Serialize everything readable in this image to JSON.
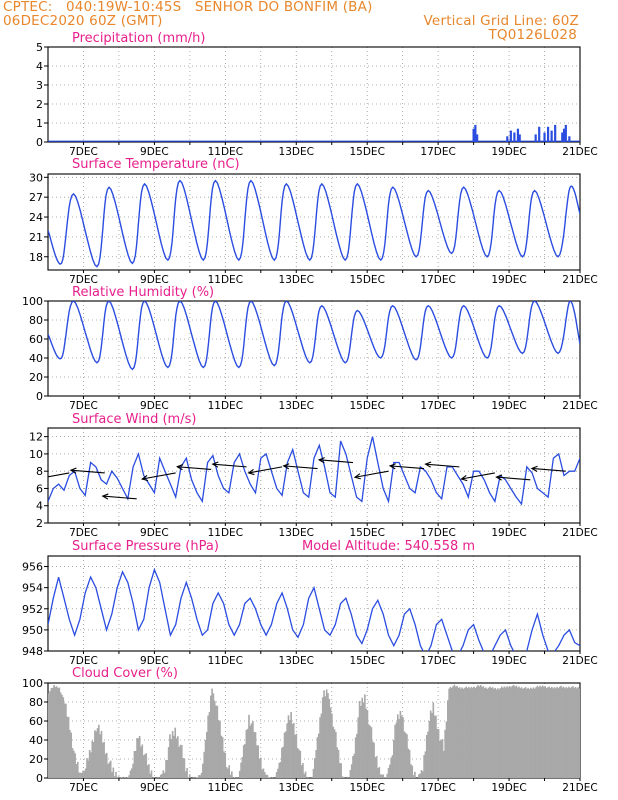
{
  "header": {
    "line1": "CPTEC:   040:19W-10:45S   SENHOR DO BONFIM (BA)",
    "line2": "06DEC2020 60Z (GMT)",
    "grid_note": "Vertical Grid Line: 60Z",
    "code": "TQ0126L028"
  },
  "colors": {
    "header": "#e8872c",
    "title": "#e8208c",
    "line": "#2b4de0",
    "cloud": "#a8a8a8",
    "grid": "#999999"
  },
  "chart_data": [
    {
      "id": "precip",
      "type": "bar",
      "title": "Precipitation (mm/h)",
      "x_tick_labels": [
        "7DEC",
        "9DEC",
        "11DEC",
        "13DEC",
        "15DEC",
        "17DEC",
        "19DEC",
        "21DEC"
      ],
      "ylim": [
        0,
        5
      ],
      "y_ticks": [
        0,
        1,
        2,
        3,
        4,
        5
      ],
      "bars": [
        [
          18.0,
          0.7
        ],
        [
          18.05,
          0.9
        ],
        [
          18.1,
          0.4
        ],
        [
          18.95,
          0.3
        ],
        [
          19.05,
          0.6
        ],
        [
          19.15,
          0.5
        ],
        [
          19.25,
          0.7
        ],
        [
          19.3,
          0.4
        ],
        [
          19.75,
          0.4
        ],
        [
          19.85,
          0.8
        ],
        [
          20.0,
          0.5
        ],
        [
          20.1,
          0.8
        ],
        [
          20.2,
          0.6
        ],
        [
          20.3,
          0.9
        ],
        [
          20.5,
          0.5
        ],
        [
          20.55,
          0.7
        ],
        [
          20.6,
          0.9
        ],
        [
          20.7,
          0.3
        ]
      ]
    },
    {
      "id": "temp",
      "type": "line",
      "title": "Surface Temperature (nC)",
      "x_tick_labels": [
        "7DEC",
        "9DEC",
        "11DEC",
        "13DEC",
        "15DEC",
        "17DEC",
        "19DEC",
        "21DEC"
      ],
      "ylim": [
        16,
        30.5
      ],
      "y_ticks": [
        18,
        21,
        24,
        27,
        30
      ],
      "daily_max": [
        27.5,
        28.5,
        29.0,
        29.5,
        29.5,
        29.5,
        29.0,
        29.0,
        29.0,
        28.5,
        28.0,
        28.5,
        28.0,
        28.0,
        28.5
      ],
      "daily_min": [
        17.0,
        16.5,
        17.0,
        17.5,
        17.5,
        17.5,
        17.5,
        17.5,
        17.5,
        17.5,
        18.0,
        18.5,
        18.0,
        18.0,
        18.0
      ],
      "start_value": 22.0,
      "end_value": 24.5
    },
    {
      "id": "rh",
      "type": "line",
      "title": "Relative Humidity (%)",
      "x_tick_labels": [
        "7DEC",
        "9DEC",
        "11DEC",
        "13DEC",
        "15DEC",
        "17DEC",
        "19DEC",
        "21DEC"
      ],
      "ylim": [
        0,
        100
      ],
      "y_ticks": [
        0,
        20,
        40,
        60,
        80,
        100
      ],
      "daily_max": [
        100,
        100,
        100,
        100,
        100,
        100,
        100,
        95,
        90,
        95,
        95,
        95,
        95,
        100,
        100
      ],
      "daily_min": [
        40,
        35,
        28,
        30,
        30,
        30,
        32,
        35,
        35,
        40,
        38,
        40,
        40,
        45,
        45
      ],
      "start_value": 65,
      "end_value": 55
    },
    {
      "id": "wind",
      "type": "line",
      "title": "Surface Wind (m/s)",
      "x_tick_labels": [
        "7DEC",
        "9DEC",
        "11DEC",
        "13DEC",
        "15DEC",
        "17DEC",
        "19DEC",
        "21DEC"
      ],
      "ylim": [
        2,
        13
      ],
      "y_ticks": [
        2,
        4,
        6,
        8,
        10,
        12
      ],
      "speed": [
        4.5,
        6.0,
        6.5,
        5.8,
        7.5,
        8.0,
        6.0,
        5.2,
        9.0,
        8.5,
        7.0,
        6.5,
        8.0,
        7.2,
        6.0,
        4.8,
        8.5,
        10.0,
        7.5,
        6.5,
        5.5,
        9.5,
        8.0,
        6.5,
        5.0,
        8.5,
        9.5,
        7.0,
        5.5,
        4.5,
        9.0,
        9.8,
        7.5,
        6.0,
        5.5,
        9.0,
        10.0,
        8.0,
        6.5,
        5.5,
        9.5,
        10.0,
        8.0,
        6.0,
        5.2,
        9.0,
        10.5,
        8.0,
        5.5,
        5.0,
        9.5,
        11.0,
        8.5,
        5.5,
        5.0,
        11.5,
        10.0,
        7.5,
        5.0,
        4.5,
        9.5,
        12.0,
        9.0,
        6.0,
        4.5,
        9.0,
        9.0,
        7.5,
        6.0,
        5.5,
        8.5,
        8.0,
        7.0,
        5.5,
        4.8,
        8.5,
        8.5,
        7.5,
        6.5,
        5.0,
        8.0,
        8.0,
        7.0,
        5.5,
        4.5,
        7.5,
        7.0,
        6.0,
        5.0,
        4.2,
        8.5,
        7.8,
        6.0,
        5.5,
        5.0,
        9.5,
        10.0,
        7.5,
        8.0,
        8.0,
        9.5
      ],
      "arrows": [
        [
          6.6,
          7.8
        ],
        [
          7.6,
          7.8
        ],
        [
          8.5,
          4.8
        ],
        [
          9.6,
          7.8
        ],
        [
          10.6,
          8.2
        ],
        [
          11.6,
          8.5
        ],
        [
          12.6,
          8.5
        ],
        [
          13.6,
          8.3
        ],
        [
          14.6,
          9.0
        ],
        [
          15.6,
          8.0
        ],
        [
          16.6,
          8.3
        ],
        [
          17.6,
          8.5
        ],
        [
          18.6,
          7.8
        ],
        [
          19.6,
          7.0
        ],
        [
          20.6,
          8.0
        ]
      ]
    },
    {
      "id": "pressure",
      "type": "line",
      "title": "Surface Pressure (hPa)",
      "annotation": "Model Altitude: 540.558 m",
      "x_tick_labels": [
        "7DEC",
        "9DEC",
        "11DEC",
        "13DEC",
        "15DEC",
        "17DEC",
        "19DEC",
        "21DEC"
      ],
      "ylim": [
        948,
        957
      ],
      "y_ticks": [
        948,
        950,
        952,
        954,
        956
      ],
      "values": [
        950.5,
        953.0,
        955.0,
        953.0,
        951.0,
        949.5,
        951.0,
        953.5,
        955.0,
        954.0,
        952.0,
        950.0,
        951.5,
        954.0,
        955.5,
        954.5,
        952.5,
        950.0,
        951.0,
        954.0,
        955.7,
        954.5,
        952.0,
        949.5,
        950.5,
        953.0,
        954.5,
        953.0,
        951.0,
        949.5,
        950.0,
        952.5,
        953.5,
        952.5,
        950.5,
        949.5,
        950.5,
        952.5,
        953.0,
        952.0,
        950.5,
        949.5,
        950.5,
        952.5,
        953.5,
        952.0,
        950.0,
        949.3,
        950.5,
        953.0,
        954.0,
        952.0,
        950.0,
        949.5,
        950.5,
        952.5,
        953.0,
        951.5,
        949.5,
        948.7,
        950.0,
        952.0,
        952.8,
        951.5,
        949.5,
        948.5,
        949.5,
        951.5,
        952.0,
        950.5,
        948.5,
        947.5,
        948.5,
        950.5,
        951.0,
        949.5,
        948.0,
        947.5,
        948.5,
        950.0,
        950.5,
        949.0,
        947.8,
        947.5,
        948.5,
        949.5,
        950.0,
        948.5,
        947.5,
        947.0,
        948.0,
        950.0,
        951.5,
        949.5,
        948.0,
        947.8,
        948.5,
        949.5,
        950.0,
        948.8,
        948.5
      ]
    },
    {
      "id": "cloud",
      "type": "bar",
      "title": "Cloud Cover (%)",
      "x_tick_labels": [
        "7DEC",
        "9DEC",
        "11DEC",
        "13DEC",
        "15DEC",
        "17DEC",
        "19DEC",
        "21DEC"
      ],
      "ylim": [
        0,
        100
      ],
      "y_ticks": [
        0,
        20,
        40,
        60,
        80,
        100
      ],
      "values": [
        90,
        97,
        95,
        80,
        55,
        20,
        5,
        10,
        30,
        55,
        45,
        25,
        8,
        2,
        0,
        0,
        15,
        45,
        30,
        10,
        0,
        0,
        10,
        40,
        50,
        35,
        10,
        0,
        0,
        5,
        50,
        95,
        70,
        40,
        10,
        0,
        0,
        30,
        65,
        50,
        25,
        5,
        0,
        0,
        20,
        55,
        65,
        45,
        15,
        0,
        0,
        40,
        85,
        90,
        60,
        25,
        0,
        0,
        30,
        75,
        85,
        55,
        25,
        5,
        0,
        20,
        60,
        70,
        40,
        10,
        0,
        10,
        55,
        75,
        50,
        30,
        95,
        97,
        95,
        95,
        95,
        96,
        97,
        95,
        95,
        94,
        95,
        96,
        97,
        96,
        95,
        94,
        95,
        96,
        97,
        95,
        95,
        96,
        95,
        96,
        95
      ]
    }
  ]
}
